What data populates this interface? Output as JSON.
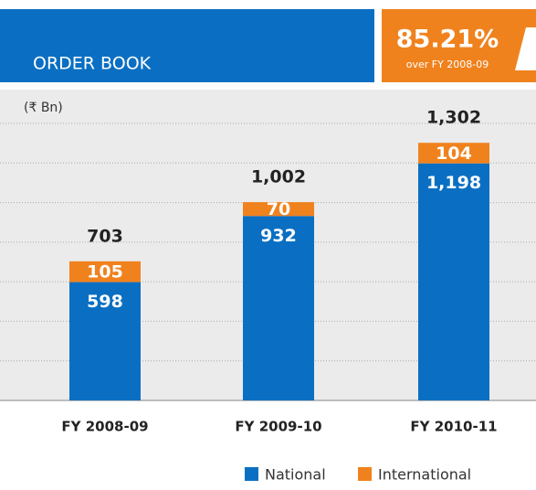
{
  "chart_data": {
    "type": "stacked_bar",
    "title": "ORDER BOOK",
    "badge": {
      "text": "85.21%",
      "caption": "over FY 2008-09"
    },
    "unit": "(₹ Bn)",
    "categories": [
      "FY 2008-09",
      "FY 2009-10",
      "FY 2010-11"
    ],
    "series": [
      {
        "name": "National",
        "color": "#0a6fc2",
        "values": [
          598,
          932,
          1198
        ],
        "value_labels": [
          "598",
          "932",
          "1,198"
        ]
      },
      {
        "name": "International",
        "color": "#f0821e",
        "values": [
          105,
          70,
          104
        ]
      }
    ],
    "totals": [
      703,
      1002,
      1302
    ],
    "total_labels": [
      "703",
      "1,002",
      "1,302"
    ],
    "ylim": [
      0,
      1400
    ]
  }
}
